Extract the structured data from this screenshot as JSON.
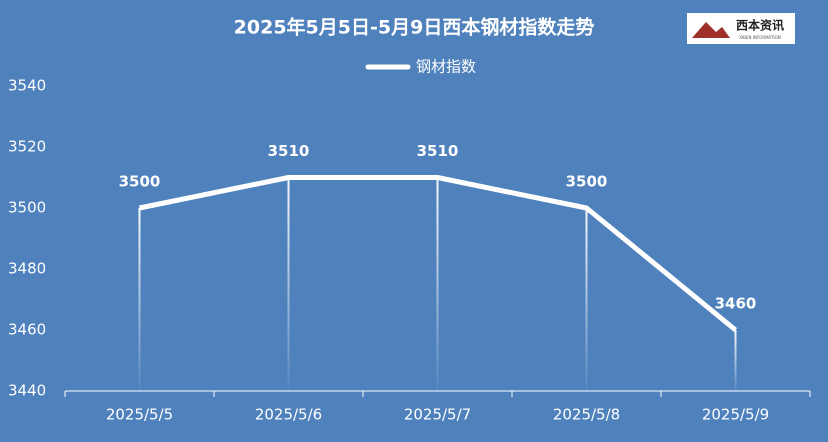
{
  "chart_data": {
    "type": "line",
    "title": "2025年5月5日-5月9日西本钢材指数走势",
    "logo": "西本资讯",
    "logo_subtitle": "XIBEN INFORMATION",
    "categories": [
      "2025/5/5",
      "2025/5/6",
      "2025/5/7",
      "2025/5/8",
      "2025/5/9"
    ],
    "series": [
      {
        "name": "钢材指数",
        "color": "#ffffff",
        "values": [
          3500,
          3510,
          3510,
          3500,
          3460
        ]
      }
    ],
    "ylim": [
      3440,
      3540
    ],
    "yticks": [
      3440,
      3460,
      3480,
      3500,
      3520,
      3540
    ],
    "grid": false,
    "legend": "top",
    "drop_lines": true,
    "data_labels": true
  }
}
